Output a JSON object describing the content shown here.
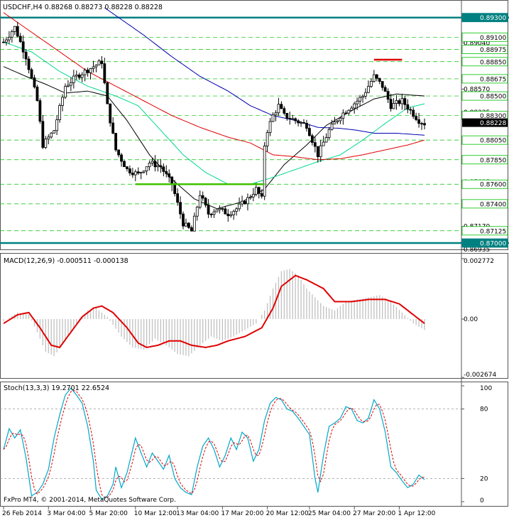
{
  "main_header": "USDCHF,H4  0.88268 0.88273 0.88228 0.88228",
  "macd_header": "MACD(12,26,9) -0.000511 -0.000138",
  "stoch_header": "Stoch(13,3,3) 19.2701 22.6524",
  "copyright": "FxPro MT4, © 2001-2014, MetaQuotes Software Corp.",
  "colors": {
    "background": "#ffffff",
    "candles": "#000000",
    "grid_dashed": "#00c000",
    "level_line": "#008080",
    "ma_fast": "#000000",
    "ma_mid": "#00d890",
    "ma_slow": "#e00000",
    "ma_200": "#0000b0",
    "macd_hist": "#c0c0c0",
    "macd_signal": "#e00000",
    "stoch_k": "#00a8c8",
    "stoch_d": "#e00000",
    "support_line": "#40c000",
    "resistance_line": "#e00000",
    "current_price_tag": "#000000"
  },
  "chart_data": [
    {
      "type": "candlestick",
      "symbol": "USDCHF",
      "timeframe": "H4",
      "ylim": [
        0.86935,
        0.8945
      ],
      "price_ticks": [
        "0.89300",
        "0.89100",
        "0.89040",
        "0.88975",
        "0.88850",
        "0.88675",
        "0.88570",
        "0.88500",
        "0.88335",
        "0.88300",
        "0.88228",
        "0.88050",
        "0.87850",
        "0.87625",
        "0.87600",
        "0.87400",
        "0.87170",
        "0.87125",
        "0.87000",
        "0.86935"
      ],
      "tagged_prices": [
        "0.89300",
        "0.89100",
        "0.88975",
        "0.88850",
        "0.88675",
        "0.88500",
        "0.88300",
        "0.88050",
        "0.87850",
        "0.87600",
        "0.87400",
        "0.87125",
        "0.87000"
      ],
      "plain_prices": [
        "0.89040",
        "0.88570",
        "0.88335",
        "0.87625",
        "0.87170",
        "0.86935"
      ],
      "current_price": "0.88228",
      "horizontal_levels": [
        0.893,
        0.87
      ],
      "dashed_levels": [
        0.891,
        0.88975,
        0.8885,
        0.88675,
        0.885,
        0.883,
        0.8805,
        0.8785,
        0.876,
        0.874,
        0.87125
      ],
      "support_segment": {
        "price": 0.876,
        "from_bar": 47,
        "to_bar": 93
      },
      "resistance_segment": {
        "price": 0.8887,
        "from_bar": 132,
        "to_bar": 142
      },
      "x_ticks": [
        "26 Feb 2014",
        "3 Mar 04:00",
        "5 Mar 20:00",
        "10 Mar 12:00",
        "13 Mar 04:00",
        "17 Mar 20:00",
        "20 Mar 12:00",
        "25 Mar 04:00",
        "27 Mar 20:00",
        "1 Apr 12:00"
      ],
      "close_anchors": [
        [
          0,
          0.8905
        ],
        [
          4,
          0.892
        ],
        [
          8,
          0.889
        ],
        [
          12,
          0.8845
        ],
        [
          14,
          0.88
        ],
        [
          18,
          0.8815
        ],
        [
          22,
          0.886
        ],
        [
          26,
          0.887
        ],
        [
          32,
          0.888
        ],
        [
          35,
          0.8885
        ],
        [
          37,
          0.884
        ],
        [
          40,
          0.8795
        ],
        [
          44,
          0.8775
        ],
        [
          48,
          0.877
        ],
        [
          52,
          0.8782
        ],
        [
          56,
          0.8778
        ],
        [
          60,
          0.876
        ],
        [
          64,
          0.872
        ],
        [
          67,
          0.8712
        ],
        [
          70,
          0.875
        ],
        [
          73,
          0.873
        ],
        [
          76,
          0.8735
        ],
        [
          80,
          0.873
        ],
        [
          83,
          0.8735
        ],
        [
          87,
          0.8745
        ],
        [
          90,
          0.8755
        ],
        [
          92,
          0.8745
        ],
        [
          93,
          0.88
        ],
        [
          94,
          0.8815
        ],
        [
          96,
          0.883
        ],
        [
          98,
          0.884
        ],
        [
          100,
          0.883
        ],
        [
          104,
          0.8825
        ],
        [
          108,
          0.882
        ],
        [
          112,
          0.879
        ],
        [
          116,
          0.8815
        ],
        [
          120,
          0.883
        ],
        [
          124,
          0.884
        ],
        [
          128,
          0.885
        ],
        [
          132,
          0.887
        ],
        [
          135,
          0.886
        ],
        [
          138,
          0.884
        ],
        [
          142,
          0.8845
        ],
        [
          145,
          0.8835
        ],
        [
          148,
          0.8825
        ],
        [
          150,
          0.8822
        ]
      ],
      "moving_averages": [
        {
          "name": "fast",
          "anchors": [
            [
              0,
              0.888
            ],
            [
              8,
              0.887
            ],
            [
              15,
              0.8862
            ],
            [
              22,
              0.8853
            ],
            [
              30,
              0.8855
            ],
            [
              37,
              0.885
            ],
            [
              44,
              0.8825
            ],
            [
              52,
              0.879
            ],
            [
              60,
              0.8765
            ],
            [
              68,
              0.8745
            ],
            [
              76,
              0.8735
            ],
            [
              85,
              0.8742
            ],
            [
              93,
              0.8755
            ],
            [
              100,
              0.878
            ],
            [
              108,
              0.88
            ],
            [
              115,
              0.882
            ],
            [
              124,
              0.8835
            ],
            [
              132,
              0.8847
            ],
            [
              140,
              0.8852
            ],
            [
              150,
              0.885
            ]
          ]
        },
        {
          "name": "mid",
          "anchors": [
            [
              0,
              0.8905
            ],
            [
              10,
              0.8895
            ],
            [
              20,
              0.8875
            ],
            [
              30,
              0.886
            ],
            [
              40,
              0.885
            ],
            [
              48,
              0.884
            ],
            [
              56,
              0.8815
            ],
            [
              64,
              0.879
            ],
            [
              72,
              0.8772
            ],
            [
              80,
              0.876
            ],
            [
              88,
              0.876
            ],
            [
              96,
              0.8767
            ],
            [
              104,
              0.8775
            ],
            [
              112,
              0.8783
            ],
            [
              120,
              0.879
            ],
            [
              128,
              0.8805
            ],
            [
              136,
              0.8822
            ],
            [
              144,
              0.8838
            ],
            [
              150,
              0.8842
            ]
          ]
        },
        {
          "name": "slow",
          "anchors": [
            [
              0,
              0.8935
            ],
            [
              10,
              0.8915
            ],
            [
              20,
              0.8895
            ],
            [
              30,
              0.8875
            ],
            [
              40,
              0.886
            ],
            [
              50,
              0.8845
            ],
            [
              60,
              0.883
            ],
            [
              70,
              0.8818
            ],
            [
              80,
              0.8808
            ],
            [
              88,
              0.8802
            ],
            [
              96,
              0.879
            ],
            [
              104,
              0.8788
            ],
            [
              112,
              0.8785
            ],
            [
              120,
              0.8786
            ],
            [
              128,
              0.879
            ],
            [
              136,
              0.8795
            ],
            [
              144,
              0.88
            ],
            [
              150,
              0.8805
            ]
          ]
        },
        {
          "name": "ma200",
          "anchors": [
            [
              36,
              0.894
            ],
            [
              50,
              0.8912
            ],
            [
              60,
              0.889
            ],
            [
              70,
              0.887
            ],
            [
              80,
              0.8855
            ],
            [
              88,
              0.884
            ],
            [
              96,
              0.883
            ],
            [
              104,
              0.8825
            ],
            [
              112,
              0.8818
            ],
            [
              120,
              0.8817
            ],
            [
              126,
              0.8815
            ],
            [
              132,
              0.8812
            ],
            [
              140,
              0.8812
            ],
            [
              150,
              0.881
            ]
          ]
        }
      ]
    },
    {
      "type": "bar+line",
      "name": "MACD(12,26,9)",
      "ylim": [
        -0.00267,
        0.002772
      ],
      "y_ticks": [
        "0.002772",
        "0.00",
        "-0.002674"
      ],
      "values_current": {
        "main": -0.000511,
        "signal": -0.000138
      },
      "signal_anchors": [
        [
          0,
          -0.0002
        ],
        [
          5,
          0.0002
        ],
        [
          9,
          0.0003
        ],
        [
          13,
          -0.0004
        ],
        [
          17,
          -0.0012
        ],
        [
          20,
          -0.0013
        ],
        [
          24,
          -0.0006
        ],
        [
          28,
          0.0001
        ],
        [
          32,
          0.0005
        ],
        [
          35,
          0.0006
        ],
        [
          39,
          0.0003
        ],
        [
          44,
          -0.0004
        ],
        [
          48,
          -0.0011
        ],
        [
          51,
          -0.0013
        ],
        [
          55,
          -0.0012
        ],
        [
          59,
          -0.001
        ],
        [
          63,
          -0.001
        ],
        [
          67,
          -0.0012
        ],
        [
          72,
          -0.0013
        ],
        [
          76,
          -0.0012
        ],
        [
          80,
          -0.001
        ],
        [
          86,
          -0.0008
        ],
        [
          92,
          -0.0004
        ],
        [
          96,
          0.0005
        ],
        [
          99,
          0.0015
        ],
        [
          104,
          0.002
        ],
        [
          108,
          0.0018
        ],
        [
          114,
          0.0014
        ],
        [
          118,
          0.0008
        ],
        [
          124,
          0.0008
        ],
        [
          130,
          0.0009
        ],
        [
          136,
          0.0009
        ],
        [
          141,
          0.0007
        ],
        [
          145,
          0.0003
        ],
        [
          150,
          -0.0002
        ]
      ],
      "hist_anchors": [
        [
          0,
          -0.0001
        ],
        [
          5,
          0.0003
        ],
        [
          9,
          0.0002
        ],
        [
          12,
          -0.0006
        ],
        [
          15,
          -0.0015
        ],
        [
          18,
          -0.0017
        ],
        [
          22,
          -0.001
        ],
        [
          26,
          -0.0002
        ],
        [
          30,
          0.0004
        ],
        [
          33,
          0.0005
        ],
        [
          37,
          0.0001
        ],
        [
          42,
          -0.0008
        ],
        [
          46,
          -0.0013
        ],
        [
          50,
          -0.0014
        ],
        [
          54,
          -0.0009
        ],
        [
          58,
          -0.0012
        ],
        [
          62,
          -0.0016
        ],
        [
          66,
          -0.0017
        ],
        [
          70,
          -0.0012
        ],
        [
          74,
          -0.0008
        ],
        [
          78,
          -0.001
        ],
        [
          82,
          -0.0008
        ],
        [
          86,
          -0.0005
        ],
        [
          90,
          -0.0002
        ],
        [
          93,
          0.0004
        ],
        [
          96,
          0.0014
        ],
        [
          99,
          0.0022
        ],
        [
          102,
          0.0023
        ],
        [
          105,
          0.002
        ],
        [
          108,
          0.0014
        ],
        [
          111,
          0.001
        ],
        [
          114,
          0.0006
        ],
        [
          118,
          0.0004
        ],
        [
          122,
          0.0008
        ],
        [
          126,
          0.0009
        ],
        [
          130,
          0.001
        ],
        [
          134,
          0.0011
        ],
        [
          138,
          0.0008
        ],
        [
          142,
          0.0003
        ],
        [
          146,
          -0.0002
        ],
        [
          150,
          -0.0005
        ]
      ]
    },
    {
      "type": "line",
      "name": "Stoch(13,3,3)",
      "ylim": [
        0,
        100
      ],
      "y_ticks": [
        "100",
        "80",
        "20",
        "0"
      ],
      "values_current": {
        "k": 19.2701,
        "d": 22.6524
      },
      "k_anchors": [
        [
          0,
          45
        ],
        [
          2,
          63
        ],
        [
          4,
          55
        ],
        [
          6,
          62
        ],
        [
          8,
          38
        ],
        [
          10,
          5
        ],
        [
          12,
          8
        ],
        [
          14,
          15
        ],
        [
          16,
          28
        ],
        [
          18,
          55
        ],
        [
          20,
          75
        ],
        [
          22,
          92
        ],
        [
          24,
          98
        ],
        [
          26,
          92
        ],
        [
          28,
          85
        ],
        [
          30,
          65
        ],
        [
          32,
          35
        ],
        [
          33,
          10
        ],
        [
          35,
          2
        ],
        [
          37,
          5
        ],
        [
          39,
          15
        ],
        [
          40,
          30
        ],
        [
          42,
          12
        ],
        [
          44,
          25
        ],
        [
          47,
          55
        ],
        [
          49,
          42
        ],
        [
          51,
          30
        ],
        [
          53,
          42
        ],
        [
          55,
          35
        ],
        [
          57,
          28
        ],
        [
          59,
          40
        ],
        [
          61,
          20
        ],
        [
          63,
          12
        ],
        [
          65,
          8
        ],
        [
          67,
          6
        ],
        [
          69,
          30
        ],
        [
          71,
          48
        ],
        [
          73,
          55
        ],
        [
          75,
          45
        ],
        [
          77,
          30
        ],
        [
          79,
          40
        ],
        [
          81,
          55
        ],
        [
          83,
          45
        ],
        [
          85,
          60
        ],
        [
          87,
          55
        ],
        [
          89,
          35
        ],
        [
          91,
          45
        ],
        [
          93,
          70
        ],
        [
          95,
          85
        ],
        [
          97,
          90
        ],
        [
          99,
          88
        ],
        [
          101,
          80
        ],
        [
          103,
          78
        ],
        [
          105,
          72
        ],
        [
          107,
          65
        ],
        [
          109,
          58
        ],
        [
          111,
          20
        ],
        [
          112,
          8
        ],
        [
          114,
          40
        ],
        [
          116,
          65
        ],
        [
          118,
          68
        ],
        [
          120,
          72
        ],
        [
          122,
          82
        ],
        [
          124,
          80
        ],
        [
          126,
          70
        ],
        [
          128,
          68
        ],
        [
          130,
          72
        ],
        [
          132,
          88
        ],
        [
          134,
          80
        ],
        [
          136,
          60
        ],
        [
          138,
          30
        ],
        [
          140,
          25
        ],
        [
          142,
          18
        ],
        [
          144,
          12
        ],
        [
          146,
          15
        ],
        [
          148,
          23
        ],
        [
          150,
          19
        ]
      ]
    }
  ]
}
